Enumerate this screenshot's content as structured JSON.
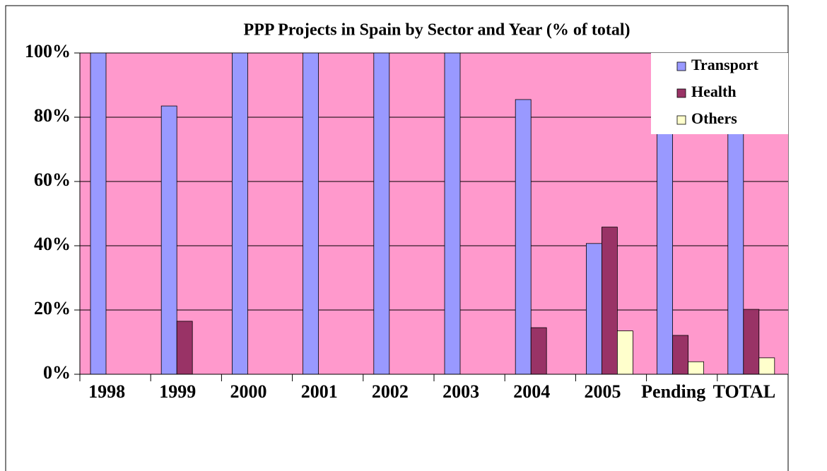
{
  "chart_data": {
    "type": "bar",
    "title": "PPP Projects in Spain by Sector and Year (% of total)",
    "categories": [
      "1998",
      "1999",
      "2000",
      "2001",
      "2002",
      "2003",
      "2004",
      "2005",
      "Pending",
      "TOTAL"
    ],
    "series": [
      {
        "name": "Transport",
        "color": "#9999ff",
        "values": [
          100,
          83.5,
          100,
          100,
          100,
          100,
          85.5,
          40.7,
          84,
          75
        ]
      },
      {
        "name": "Health",
        "color": "#993366",
        "values": [
          0,
          16.5,
          0,
          0,
          0,
          0,
          14.5,
          45.8,
          12.1,
          20.2
        ]
      },
      {
        "name": "Others",
        "color": "#ffffcc",
        "values": [
          0,
          0,
          0,
          0,
          0,
          0,
          0,
          13.5,
          3.9,
          5.1
        ]
      }
    ],
    "ylim": [
      0,
      100
    ],
    "yticks": [
      {
        "value": 0,
        "label": "0%"
      },
      {
        "value": 20,
        "label": "20%"
      },
      {
        "value": 40,
        "label": "40%"
      },
      {
        "value": 60,
        "label": "60%"
      },
      {
        "value": 80,
        "label": "80%"
      },
      {
        "value": 100,
        "label": "100%"
      }
    ],
    "grid": true,
    "legend": "top-right",
    "plot_background": "#ff99cc"
  }
}
